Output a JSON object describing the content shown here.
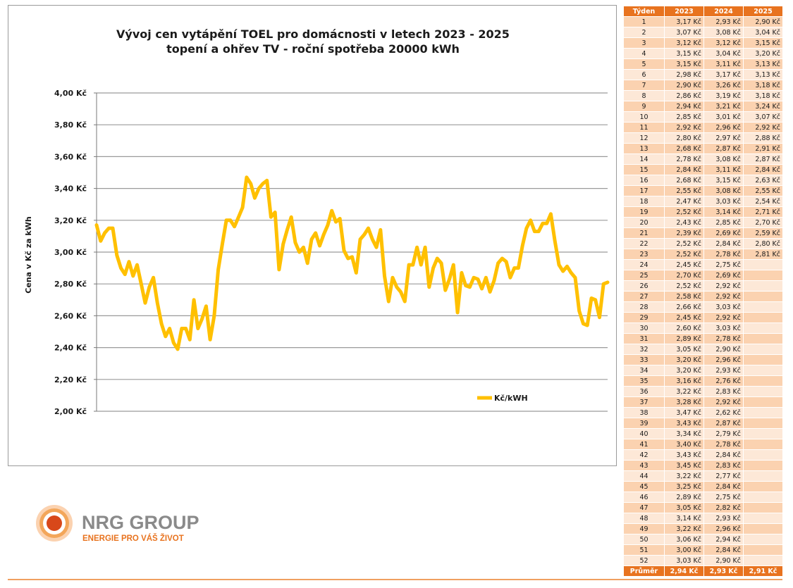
{
  "chart": {
    "title_line1": "Vývoj cen vytápění TOEL pro domácnosti v letech 2023 - 2025",
    "title_line2": "topení a ohřev TV - roční spotřeba 20000 kWh",
    "ylabel": "Cena v Kč za kWh",
    "legend": "Kč/kWH",
    "line_color": "#FFC000"
  },
  "chart_data": {
    "type": "line",
    "title": "Vývoj cen vytápění TOEL pro domácnosti v letech 2023 - 2025",
    "subtitle": "topení a ohřev TV - roční spotřeba 20000 kWh",
    "xlabel": "",
    "ylabel": "Cena v Kč za kWh",
    "ylim": [
      2.0,
      4.0
    ],
    "yticks": [
      "2,00 Kč",
      "2,20 Kč",
      "2,40 Kč",
      "2,60 Kč",
      "2,80 Kč",
      "3,00 Kč",
      "3,20 Kč",
      "3,40 Kč",
      "3,60 Kč",
      "3,80 Kč",
      "4,00 Kč"
    ],
    "grid": true,
    "legend_position": "right",
    "series": [
      {
        "name": "Kč/kWH",
        "values": [
          3.17,
          3.07,
          3.12,
          3.15,
          3.15,
          2.98,
          2.9,
          2.86,
          2.94,
          2.85,
          2.92,
          2.8,
          2.68,
          2.78,
          2.84,
          2.68,
          2.55,
          2.47,
          2.52,
          2.43,
          2.39,
          2.52,
          2.52,
          2.45,
          2.7,
          2.52,
          2.58,
          2.66,
          2.45,
          2.6,
          2.89,
          3.05,
          3.2,
          3.2,
          3.16,
          3.22,
          3.28,
          3.47,
          3.43,
          3.34,
          3.4,
          3.43,
          3.45,
          3.22,
          3.25,
          2.89,
          3.05,
          3.14,
          3.22,
          3.06,
          3.0,
          3.03,
          2.93,
          3.08,
          3.12,
          3.04,
          3.11,
          3.17,
          3.26,
          3.19,
          3.21,
          3.01,
          2.96,
          2.97,
          2.87,
          3.08,
          3.11,
          3.15,
          3.08,
          3.03,
          3.14,
          2.85,
          2.69,
          2.84,
          2.78,
          2.75,
          2.69,
          2.92,
          2.92,
          3.03,
          2.92,
          3.03,
          2.78,
          2.9,
          2.96,
          2.93,
          2.76,
          2.83,
          2.92,
          2.62,
          2.87,
          2.79,
          2.78,
          2.84,
          2.83,
          2.77,
          2.84,
          2.75,
          2.82,
          2.93,
          2.96,
          2.94,
          2.84,
          2.9,
          2.9,
          3.04,
          3.15,
          3.2,
          3.13,
          3.13,
          3.18,
          3.18,
          3.24,
          3.07,
          2.92,
          2.88,
          2.91,
          2.87,
          2.84,
          2.63,
          2.55,
          2.54,
          2.71,
          2.7,
          2.59,
          2.8,
          2.81
        ]
      }
    ]
  },
  "table": {
    "headers": [
      "Týden",
      "2023",
      "2024",
      "2025"
    ],
    "rows": [
      [
        "1",
        "3,17 Kč",
        "2,93 Kč",
        "2,90 Kč"
      ],
      [
        "2",
        "3,07 Kč",
        "3,08 Kč",
        "3,04 Kč"
      ],
      [
        "3",
        "3,12 Kč",
        "3,12 Kč",
        "3,15 Kč"
      ],
      [
        "4",
        "3,15 Kč",
        "3,04 Kč",
        "3,20 Kč"
      ],
      [
        "5",
        "3,15 Kč",
        "3,11 Kč",
        "3,13 Kč"
      ],
      [
        "6",
        "2,98 Kč",
        "3,17 Kč",
        "3,13 Kč"
      ],
      [
        "7",
        "2,90 Kč",
        "3,26 Kč",
        "3,18 Kč"
      ],
      [
        "8",
        "2,86 Kč",
        "3,19 Kč",
        "3,18 Kč"
      ],
      [
        "9",
        "2,94 Kč",
        "3,21 Kč",
        "3,24 Kč"
      ],
      [
        "10",
        "2,85 Kč",
        "3,01 Kč",
        "3,07 Kč"
      ],
      [
        "11",
        "2,92 Kč",
        "2,96 Kč",
        "2,92 Kč"
      ],
      [
        "12",
        "2,80 Kč",
        "2,97 Kč",
        "2,88 Kč"
      ],
      [
        "13",
        "2,68 Kč",
        "2,87 Kč",
        "2,91 Kč"
      ],
      [
        "14",
        "2,78 Kč",
        "3,08 Kč",
        "2,87 Kč"
      ],
      [
        "15",
        "2,84 Kč",
        "3,11 Kč",
        "2,84 Kč"
      ],
      [
        "16",
        "2,68 Kč",
        "3,15 Kč",
        "2,63 Kč"
      ],
      [
        "17",
        "2,55 Kč",
        "3,08 Kč",
        "2,55 Kč"
      ],
      [
        "18",
        "2,47 Kč",
        "3,03 Kč",
        "2,54 Kč"
      ],
      [
        "19",
        "2,52 Kč",
        "3,14 Kč",
        "2,71 Kč"
      ],
      [
        "20",
        "2,43 Kč",
        "2,85 Kč",
        "2,70 Kč"
      ],
      [
        "21",
        "2,39 Kč",
        "2,69 Kč",
        "2,59 Kč"
      ],
      [
        "22",
        "2,52 Kč",
        "2,84 Kč",
        "2,80 Kč"
      ],
      [
        "23",
        "2,52 Kč",
        "2,78 Kč",
        "2,81 Kč"
      ],
      [
        "24",
        "2,45 Kč",
        "2,75 Kč",
        ""
      ],
      [
        "25",
        "2,70 Kč",
        "2,69 Kč",
        ""
      ],
      [
        "26",
        "2,52 Kč",
        "2,92 Kč",
        ""
      ],
      [
        "27",
        "2,58 Kč",
        "2,92 Kč",
        ""
      ],
      [
        "28",
        "2,66 Kč",
        "3,03 Kč",
        ""
      ],
      [
        "29",
        "2,45 Kč",
        "2,92 Kč",
        ""
      ],
      [
        "30",
        "2,60 Kč",
        "3,03 Kč",
        ""
      ],
      [
        "31",
        "2,89 Kč",
        "2,78 Kč",
        ""
      ],
      [
        "32",
        "3,05 Kč",
        "2,90 Kč",
        ""
      ],
      [
        "33",
        "3,20 Kč",
        "2,96 Kč",
        ""
      ],
      [
        "34",
        "3,20 Kč",
        "2,93 Kč",
        ""
      ],
      [
        "35",
        "3,16 Kč",
        "2,76 Kč",
        ""
      ],
      [
        "36",
        "3,22 Kč",
        "2,83 Kč",
        ""
      ],
      [
        "37",
        "3,28 Kč",
        "2,92 Kč",
        ""
      ],
      [
        "38",
        "3,47 Kč",
        "2,62 Kč",
        ""
      ],
      [
        "39",
        "3,43 Kč",
        "2,87 Kč",
        ""
      ],
      [
        "40",
        "3,34 Kč",
        "2,79 Kč",
        ""
      ],
      [
        "41",
        "3,40 Kč",
        "2,78 Kč",
        ""
      ],
      [
        "42",
        "3,43 Kč",
        "2,84 Kč",
        ""
      ],
      [
        "43",
        "3,45 Kč",
        "2,83 Kč",
        ""
      ],
      [
        "44",
        "3,22 Kč",
        "2,77 Kč",
        ""
      ],
      [
        "45",
        "3,25 Kč",
        "2,84 Kč",
        ""
      ],
      [
        "46",
        "2,89 Kč",
        "2,75 Kč",
        ""
      ],
      [
        "47",
        "3,05 Kč",
        "2,82 Kč",
        ""
      ],
      [
        "48",
        "3,14 Kč",
        "2,93 Kč",
        ""
      ],
      [
        "49",
        "3,22 Kč",
        "2,96 Kč",
        ""
      ],
      [
        "50",
        "3,06 Kč",
        "2,94 Kč",
        ""
      ],
      [
        "51",
        "3,00 Kč",
        "2,84 Kč",
        ""
      ],
      [
        "52",
        "3,03 Kč",
        "2,90 Kč",
        ""
      ]
    ],
    "average": [
      "Průměr",
      "2,94 Kč",
      "2,93 Kč",
      "2,91 Kč"
    ]
  },
  "logo": {
    "brand_name": "NRG GROUP",
    "tagline": "ENERGIE PRO VÁŠ ŽIVOT",
    "brand_color": "#E8731F"
  }
}
